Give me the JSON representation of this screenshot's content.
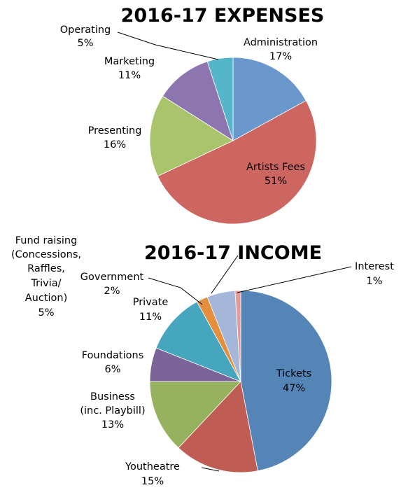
{
  "chart_data": [
    {
      "type": "pie",
      "title": "2016-17 EXPENSES",
      "slices": [
        {
          "label": "Administration",
          "value": 17,
          "pct_label": "17%",
          "color": "#6a98cd"
        },
        {
          "label": "Artists Fees",
          "value": 51,
          "pct_label": "51%",
          "color": "#cd6661"
        },
        {
          "label": "Presenting",
          "value": 16,
          "pct_label": "16%",
          "color": "#a9c46a"
        },
        {
          "label": "Marketing",
          "value": 11,
          "pct_label": "11%",
          "color": "#8d76b0"
        },
        {
          "label": "Operating",
          "value": 5,
          "pct_label": "5%",
          "color": "#55b5cb"
        }
      ]
    },
    {
      "type": "pie",
      "title": "2016-17 INCOME",
      "slices": [
        {
          "label": "Tickets",
          "value": 47,
          "pct_label": "47%",
          "color": "#5584b7"
        },
        {
          "label": "Youtheatre",
          "value": 15,
          "pct_label": "15%",
          "color": "#bf5c54"
        },
        {
          "label": "Business (inc. Playbill)",
          "value": 13,
          "pct_label": "13%",
          "color": "#97b25f"
        },
        {
          "label": "Foundations",
          "value": 6,
          "pct_label": "6%",
          "color": "#7b6497"
        },
        {
          "label": "Private",
          "value": 11,
          "pct_label": "11%",
          "color": "#45a6bd"
        },
        {
          "label": "Government",
          "value": 2,
          "pct_label": "2%",
          "color": "#e38f3e"
        },
        {
          "label": "Fund raising (Concessions, Raffles, Trivia/ Auction)",
          "value": 5,
          "pct_label": "5%",
          "color": "#a4b7d9"
        },
        {
          "label": "Interest",
          "value": 1,
          "pct_label": "1%",
          "color": "#e49c99"
        }
      ]
    }
  ]
}
